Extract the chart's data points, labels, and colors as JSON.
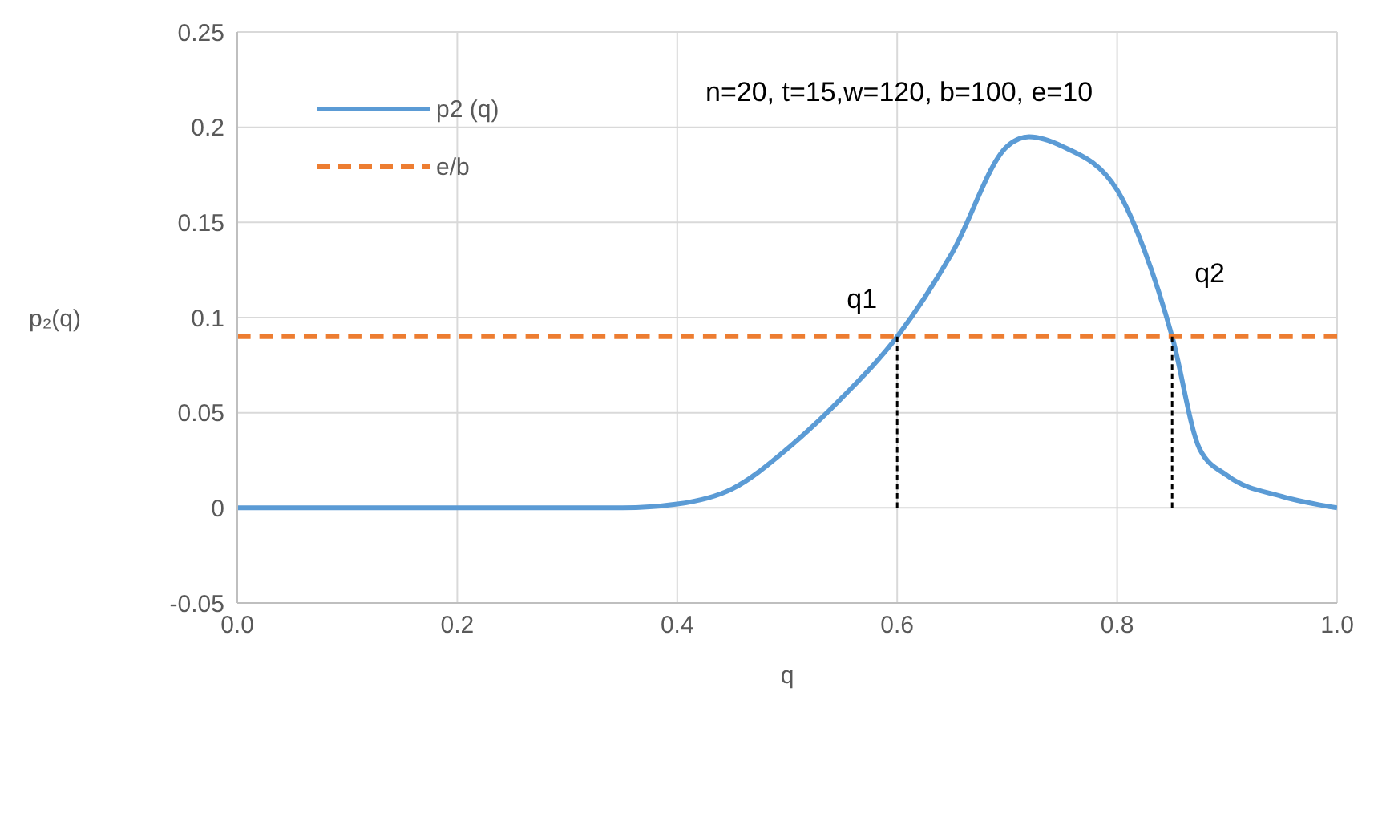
{
  "chart_data": {
    "type": "line",
    "xlabel": "q",
    "ylabel": "p₂(q)",
    "xlim": [
      0,
      1
    ],
    "ylim": [
      -0.05,
      0.25
    ],
    "xticks": [
      {
        "value": 0,
        "label": "0.0"
      },
      {
        "value": 0.2,
        "label": "0.2"
      },
      {
        "value": 0.4,
        "label": "0.4"
      },
      {
        "value": 0.6,
        "label": "0.6"
      },
      {
        "value": 0.8,
        "label": "0.8"
      },
      {
        "value": 1,
        "label": "1.0"
      }
    ],
    "yticks": [
      -0.05,
      0,
      0.05,
      0.1,
      0.15,
      0.2,
      0.25
    ],
    "grid": true,
    "legend": "top left",
    "annotations": [
      "n=20, t=15,w=120, b=100, e=10",
      {
        "text": "q1",
        "x": 0.6,
        "y": 0.09
      },
      {
        "text": "q2",
        "x": 0.85,
        "y": 0.09
      }
    ],
    "series": [
      {
        "name": "p2 (q)",
        "color": "#5b9bd5",
        "line_style": "solid",
        "x": [
          0,
          0.1,
          0.2,
          0.3,
          0.35,
          0.4,
          0.45,
          0.5,
          0.55,
          0.6,
          0.65,
          0.7,
          0.72,
          0.75,
          0.8,
          0.825,
          0.85,
          0.875,
          0.9,
          0.95,
          1
        ],
        "values": [
          0,
          0,
          0,
          0,
          0,
          0.002,
          0.01,
          0.031,
          0.058,
          0.09,
          0.134,
          0.19,
          0.195,
          0.19,
          0.167,
          0.135,
          0.09,
          0.031,
          0.017,
          0.006,
          0
        ]
      },
      {
        "name": "e/b",
        "color": "#ed7d31",
        "line_style": "dashed",
        "x": [
          0,
          1
        ],
        "values": [
          0.09,
          0.09
        ]
      },
      {
        "color": "#000000",
        "line_style": "dashed",
        "x": [
          0.6,
          0.6
        ],
        "values": [
          0,
          0.09
        ]
      },
      {
        "color": "#000000",
        "line_style": "dashed",
        "x": [
          0.85,
          0.85
        ],
        "values": [
          0,
          0.09
        ]
      }
    ]
  }
}
